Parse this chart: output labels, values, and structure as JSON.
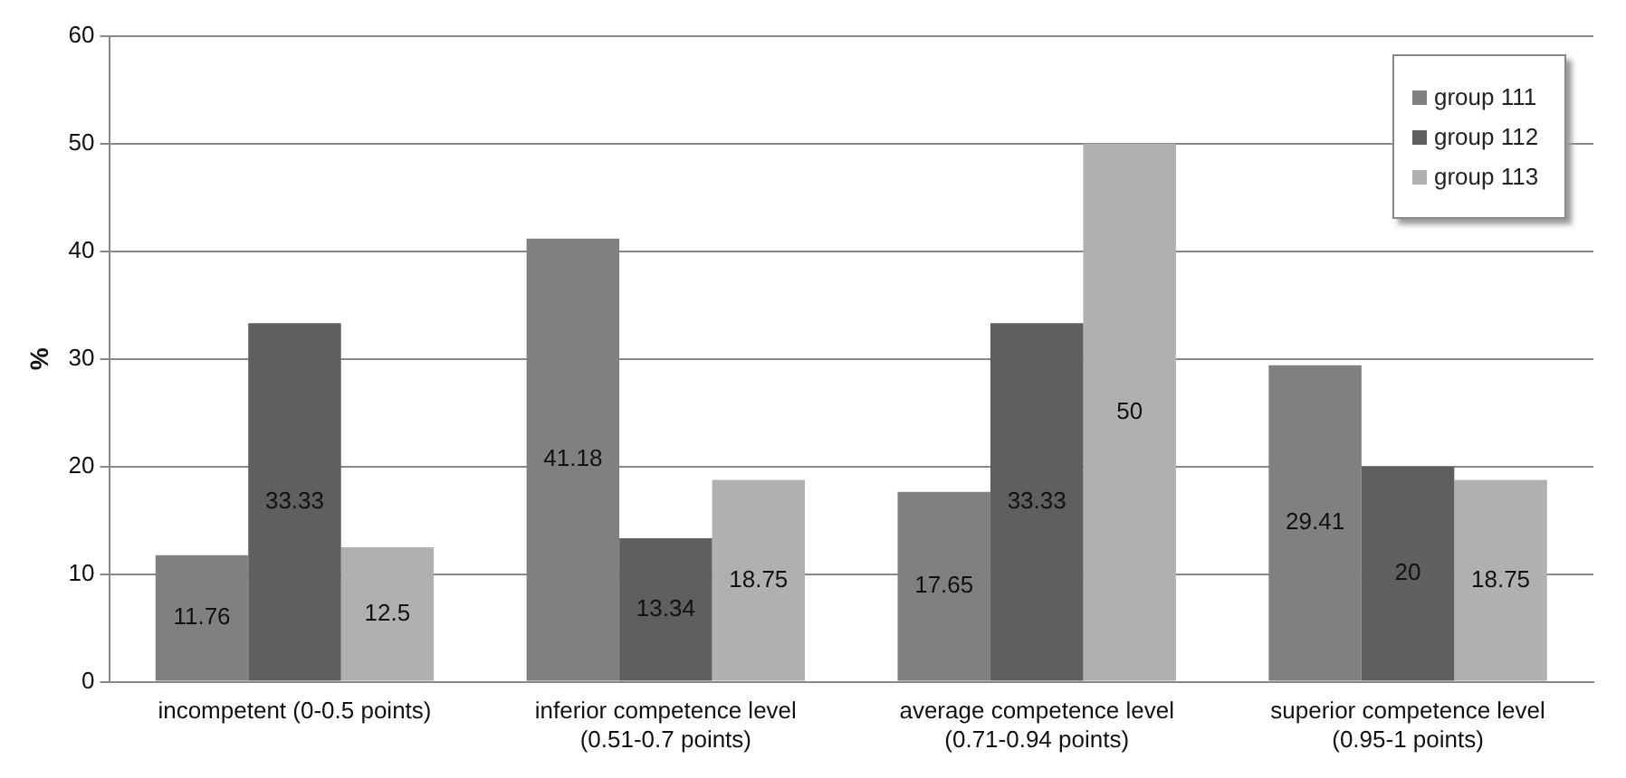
{
  "chart_data": {
    "type": "bar",
    "ylabel": "%",
    "categories": [
      "incompetent (0-0.5 points)",
      "inferior competence level (0.51-0.7 points)",
      "average competence level (0.71-0.94 points)",
      "superior competence level (0.95-1 points)"
    ],
    "series": [
      {
        "name": "group 111",
        "color": "#808080",
        "values": [
          11.76,
          41.18,
          17.65,
          29.41
        ]
      },
      {
        "name": "group 112",
        "color": "#5f5f5f",
        "values": [
          33.33,
          13.34,
          33.33,
          20
        ]
      },
      {
        "name": "group 113",
        "color": "#b0b0b0",
        "values": [
          12.5,
          18.75,
          50,
          18.75
        ]
      }
    ],
    "ylim": [
      0,
      60
    ],
    "yticks": [
      0,
      10,
      20,
      30,
      40,
      50,
      60
    ],
    "grid": "y",
    "legend": "top right",
    "data_labels": true
  }
}
